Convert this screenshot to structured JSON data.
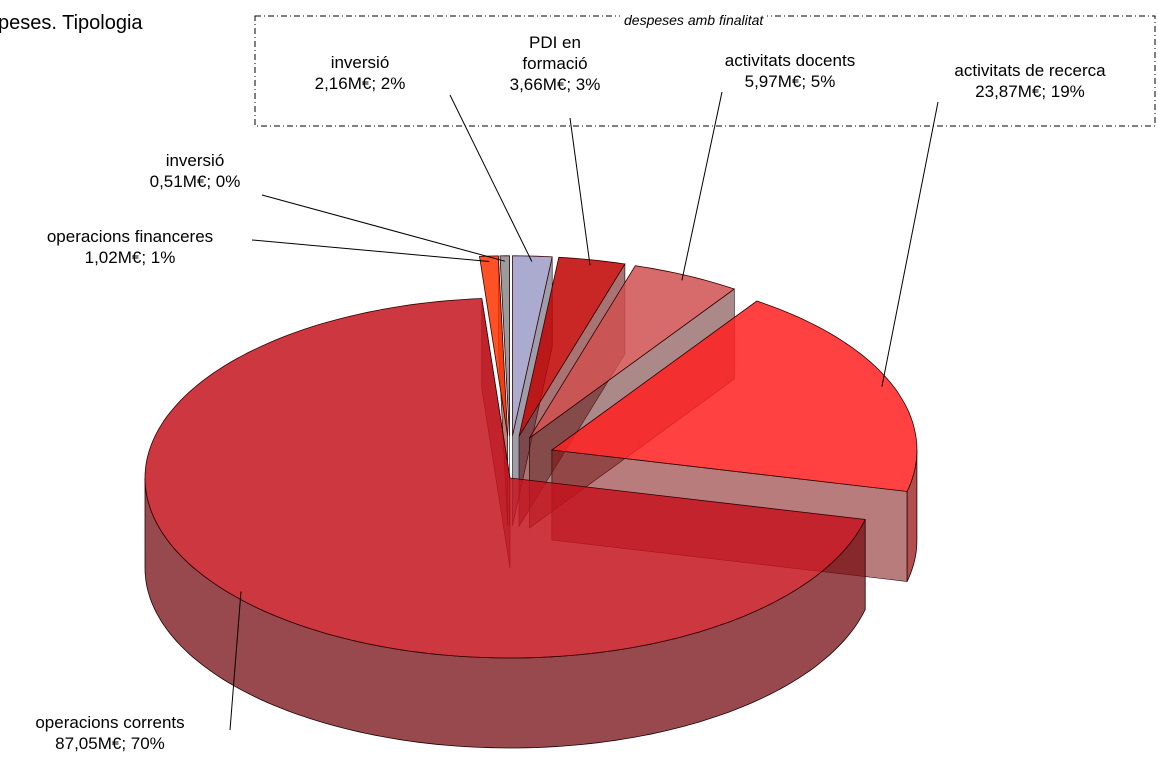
{
  "chart_data": {
    "type": "pie",
    "title": "peses. Tipologia",
    "annotation": "despeses amb finalitat",
    "categories": [
      "inversió",
      "PDI en formació",
      "activitats docents",
      "activitats de recerca",
      "operacions corrents",
      "operacions financeres",
      "inversió"
    ],
    "values": [
      2.16,
      3.66,
      5.97,
      23.87,
      87.05,
      1.02,
      0.51
    ],
    "value_labels": [
      "2,16M€; 2%",
      "3,66M€; 3%",
      "5,97M€; 5%",
      "23,87M€; 19%",
      "87,05M€; 70%",
      "1,02M€; 1%",
      "0,51M€; 0%"
    ],
    "colors": [
      "#9c9cc8",
      "#c00000",
      "#d05050",
      "#ff2020",
      "#c4141e",
      "#ff3300",
      "#8a8a8a"
    ]
  }
}
